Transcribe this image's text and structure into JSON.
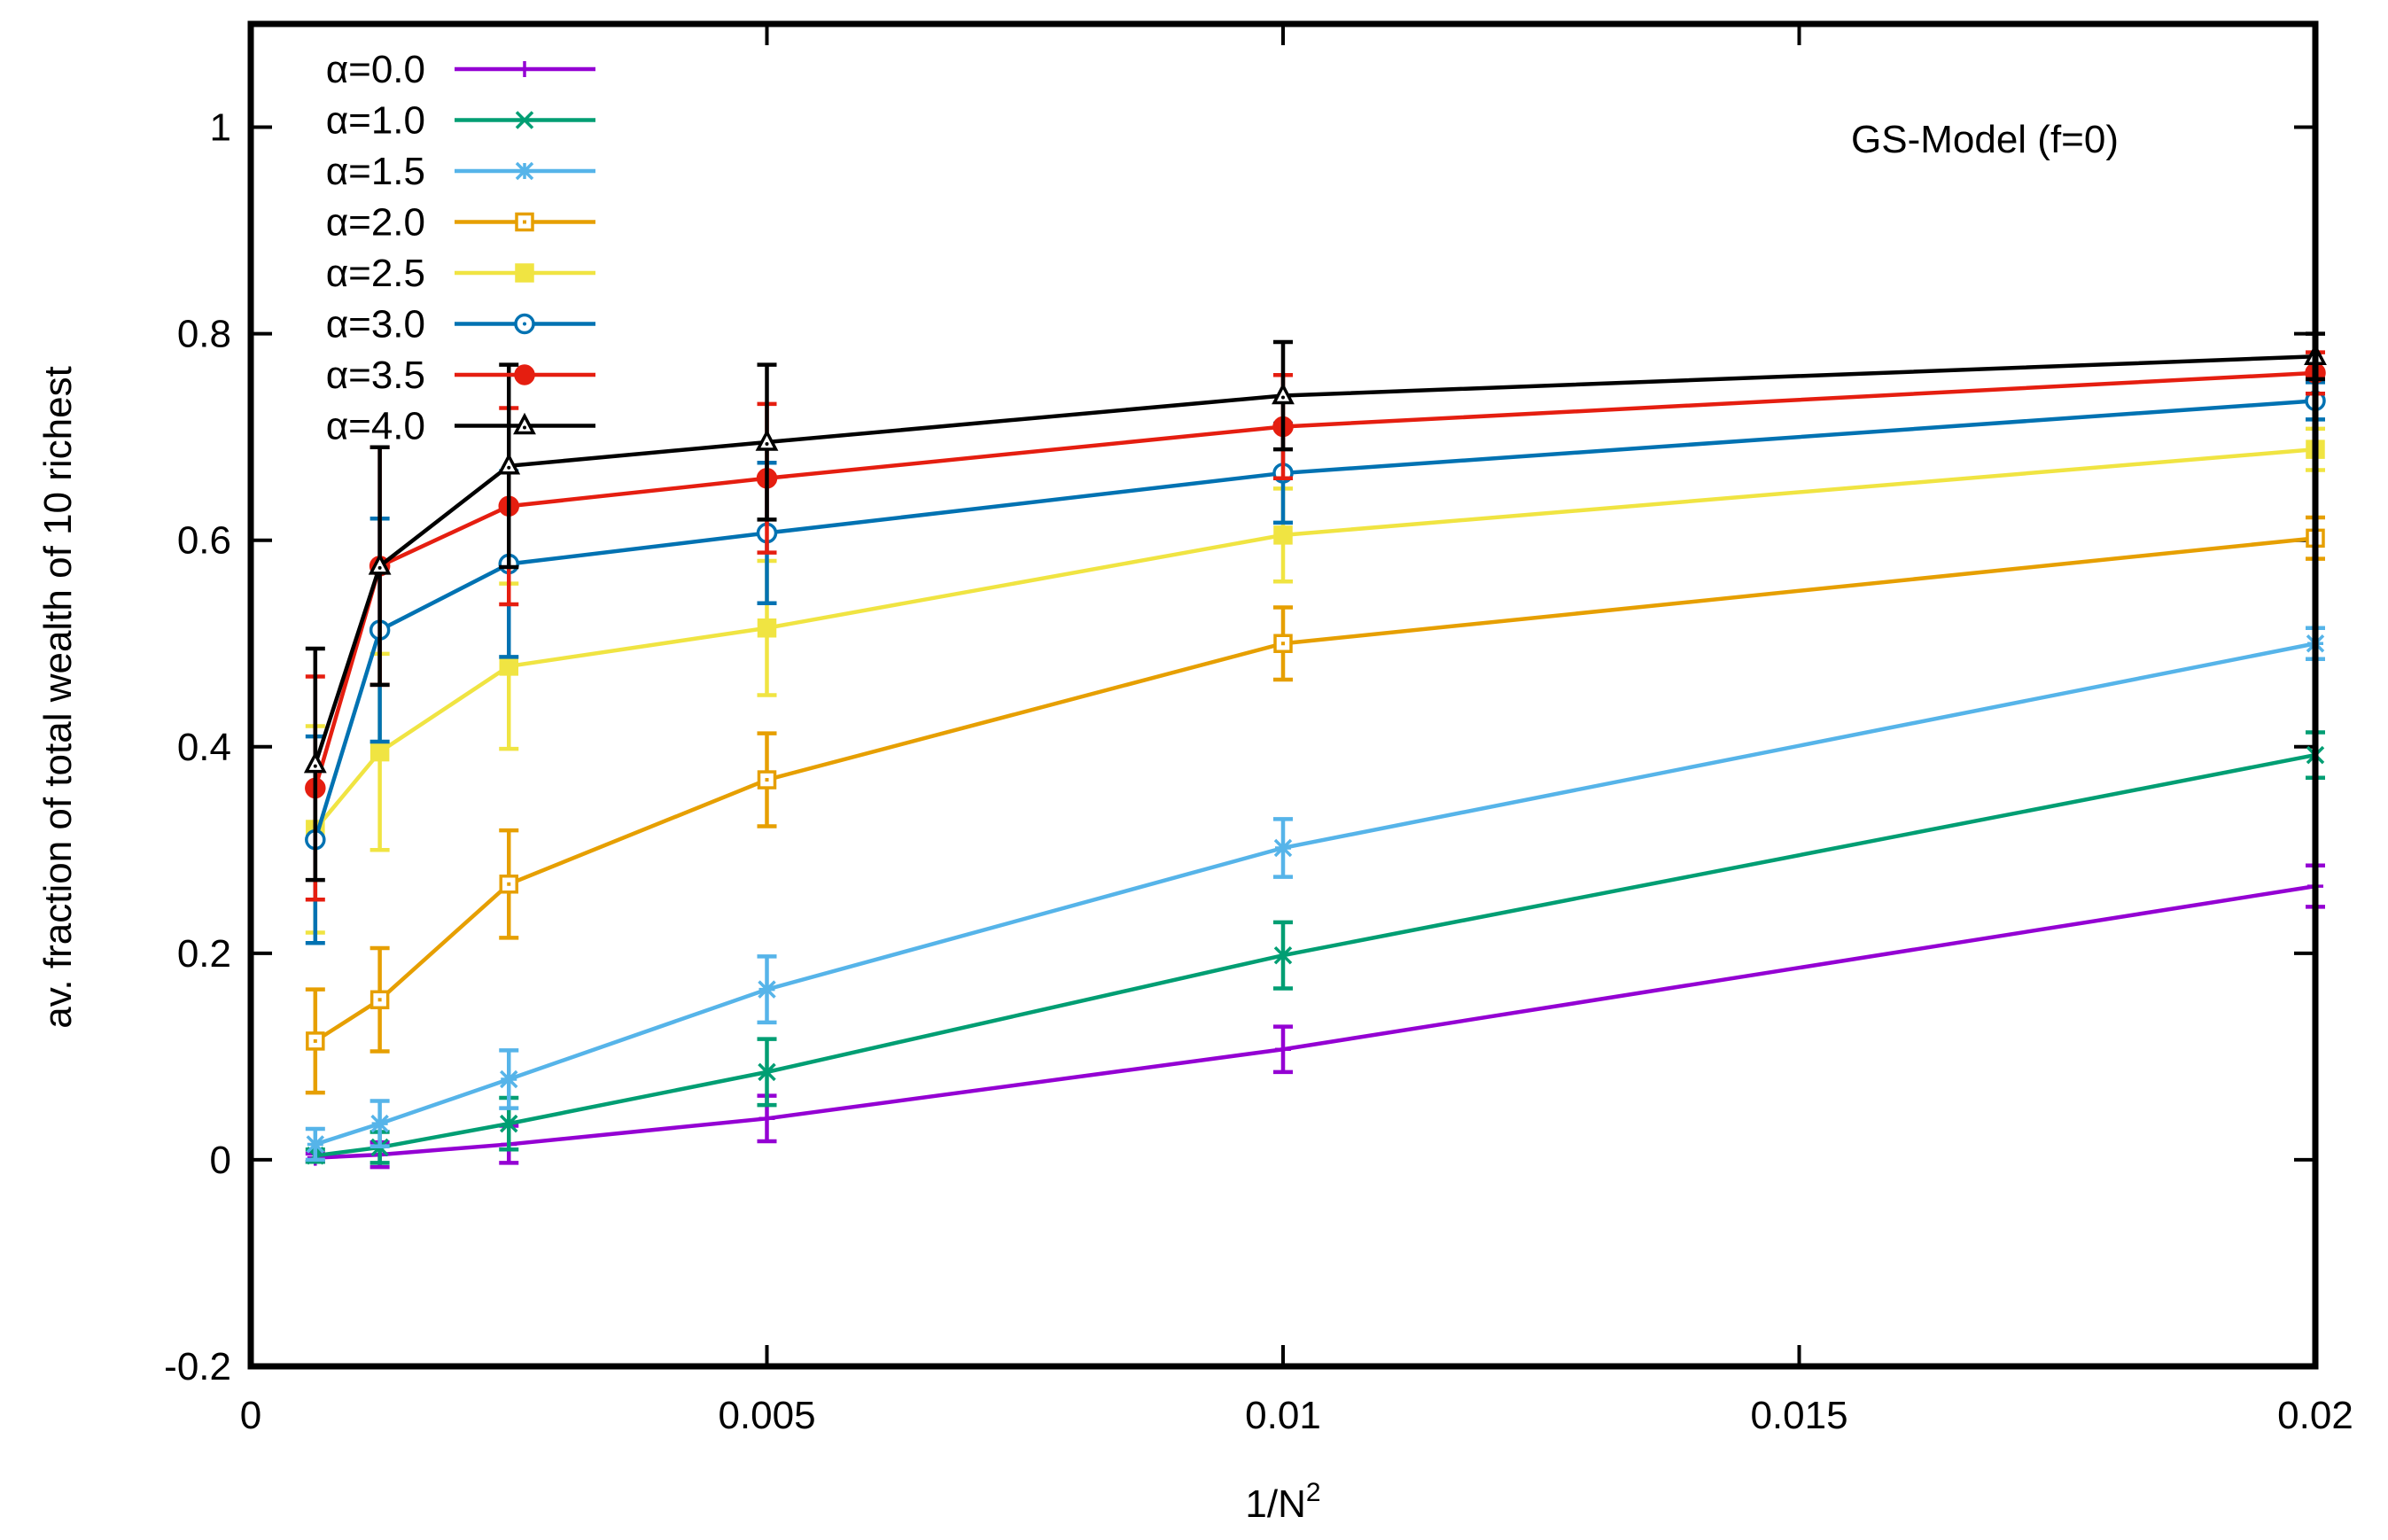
{
  "chart_data": {
    "type": "line",
    "title": "",
    "annotation": "GS-Model (f=0)",
    "xlabel": "1/N",
    "xlabel_sup": "2",
    "ylabel": "av. fraction  of total wealth of 10 richest",
    "xlim": [
      0,
      0.02
    ],
    "ylim": [
      -0.2,
      1.1
    ],
    "xticks": [
      0,
      0.005,
      0.01,
      0.015,
      0.02
    ],
    "xtick_labels": [
      "0",
      "0.005",
      "0.01",
      "0.015",
      "0.02"
    ],
    "yticks": [
      -0.2,
      0,
      0.2,
      0.4,
      0.6,
      0.8,
      1
    ],
    "ytick_labels": [
      "-0.2",
      "0",
      "0.2",
      "0.4",
      "0.6",
      "0.8",
      "1"
    ],
    "grid": false,
    "legend_position": "top-left",
    "x": [
      0.000625,
      0.00125,
      0.0025,
      0.005,
      0.01,
      0.02
    ],
    "series": [
      {
        "name": "α=0.0",
        "color": "#9400d3",
        "marker": "plus",
        "values": [
          0.002,
          0.005,
          0.015,
          0.04,
          0.107,
          0.265
        ],
        "errors": [
          0.004,
          0.012,
          0.018,
          0.022,
          0.022,
          0.02
        ]
      },
      {
        "name": "α=1.0",
        "color": "#009e73",
        "marker": "cross",
        "values": [
          0.004,
          0.012,
          0.035,
          0.085,
          0.198,
          0.392
        ],
        "errors": [
          0.006,
          0.015,
          0.025,
          0.032,
          0.032,
          0.022
        ]
      },
      {
        "name": "α=1.5",
        "color": "#56b4e9",
        "marker": "star",
        "values": [
          0.015,
          0.035,
          0.078,
          0.165,
          0.302,
          0.5
        ],
        "errors": [
          0.015,
          0.022,
          0.028,
          0.032,
          0.028,
          0.015
        ]
      },
      {
        "name": "α=2.0",
        "color": "#e69f00",
        "marker": "box",
        "values": [
          0.115,
          0.155,
          0.267,
          0.368,
          0.5,
          0.602
        ],
        "errors": [
          0.05,
          0.05,
          0.052,
          0.045,
          0.035,
          0.02
        ]
      },
      {
        "name": "α=2.5",
        "color": "#f0e442",
        "marker": "fbox",
        "values": [
          0.32,
          0.395,
          0.478,
          0.515,
          0.605,
          0.688
        ],
        "errors": [
          0.1,
          0.095,
          0.08,
          0.065,
          0.045,
          0.02
        ]
      },
      {
        "name": "α=3.0",
        "color": "#0072b2",
        "marker": "circle",
        "values": [
          0.31,
          0.513,
          0.577,
          0.607,
          0.665,
          0.735
        ],
        "errors": [
          0.1,
          0.108,
          0.09,
          0.068,
          0.048,
          0.018
        ]
      },
      {
        "name": "α=3.5",
        "color": "#e51e10",
        "marker": "fcircle",
        "values": [
          0.36,
          0.575,
          0.633,
          0.66,
          0.71,
          0.762
        ],
        "errors": [
          0.108,
          0.115,
          0.095,
          0.072,
          0.05,
          0.02
        ]
      },
      {
        "name": "α=4.0",
        "color": "#000000",
        "marker": "triangle",
        "values": [
          0.383,
          0.575,
          0.672,
          0.695,
          0.74,
          0.778
        ],
        "errors": [
          0.112,
          0.115,
          0.098,
          0.075,
          0.052,
          0.022
        ]
      }
    ]
  }
}
